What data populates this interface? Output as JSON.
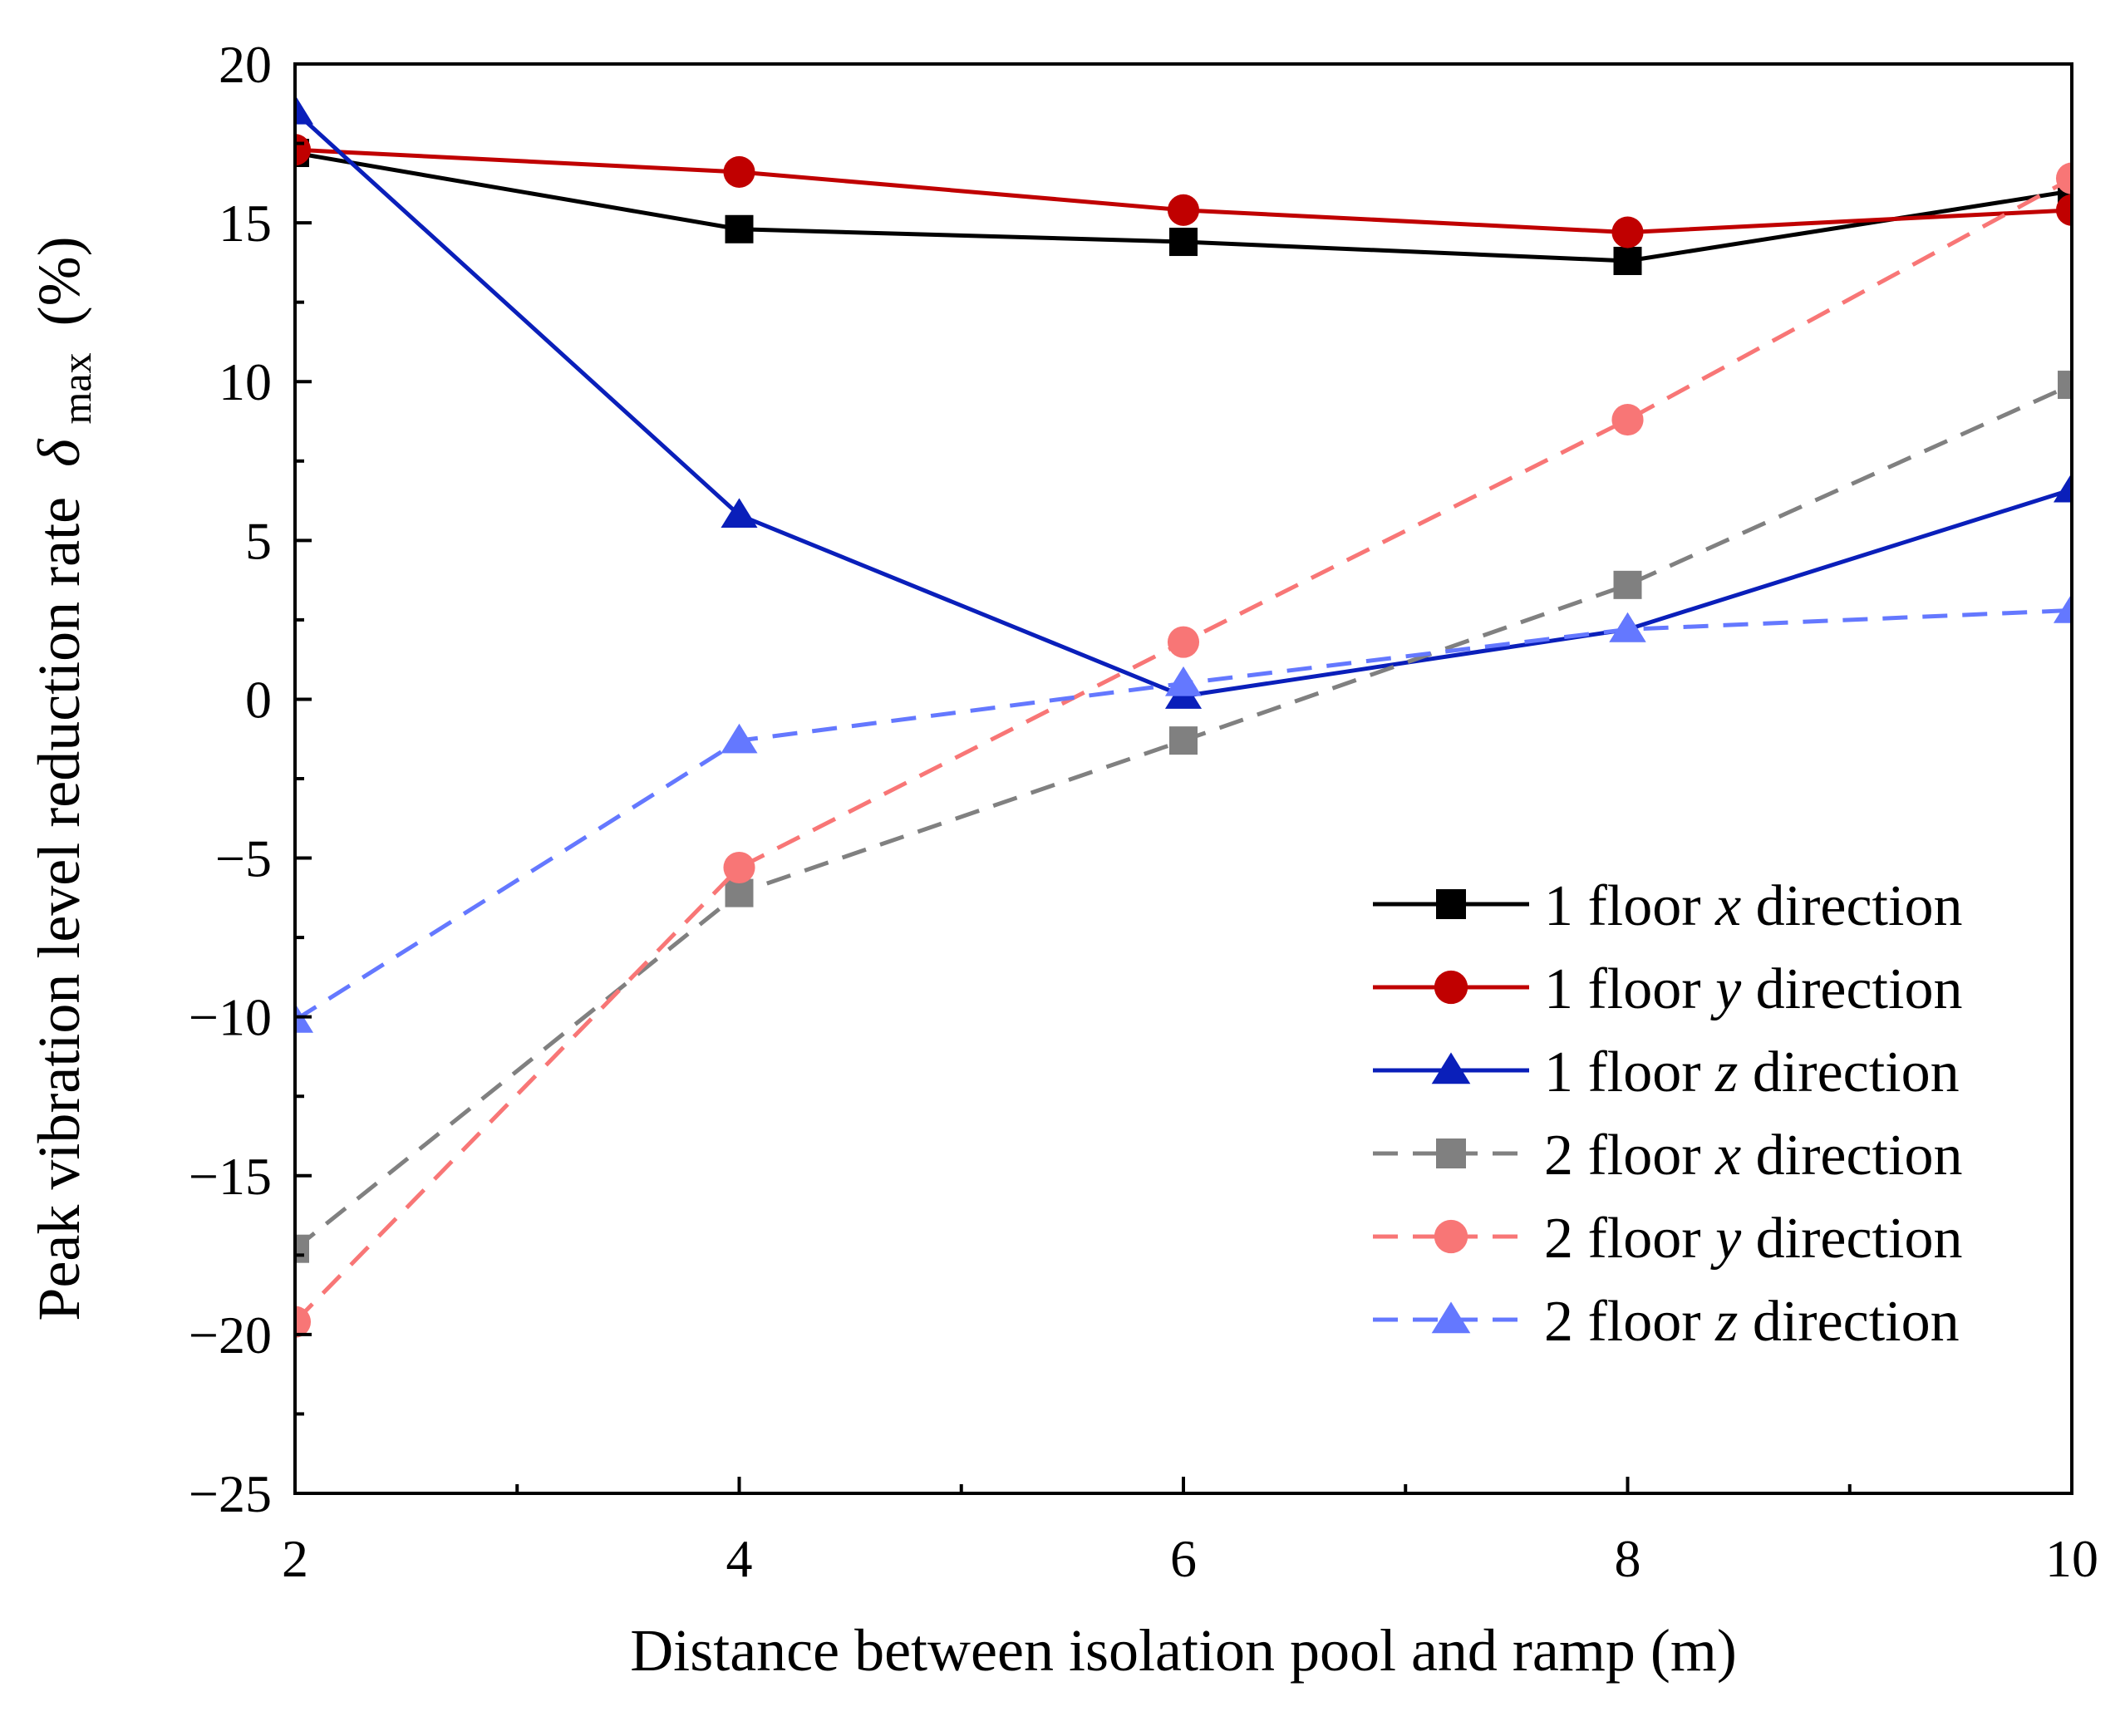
{
  "chart_data": {
    "type": "line",
    "title": "",
    "xlabel": "Distance between isolation pool and ramp (m)",
    "ylabel": {
      "main": "Peak vibration level reduction rate",
      "symbol": "δ",
      "subscript": "max",
      "unit": "(%)"
    },
    "xlim": [
      2,
      10
    ],
    "ylim": [
      -25,
      20
    ],
    "x_ticks": [
      "2",
      "4",
      "6",
      "8",
      "10"
    ],
    "y_ticks": [
      "20",
      "15",
      "10",
      "5",
      "0",
      "−5",
      "−10",
      "−15",
      "−20",
      "−25"
    ],
    "x": [
      2,
      4,
      6,
      8,
      10
    ],
    "legend_position": "lower-right",
    "grid": false,
    "series": [
      {
        "name_prefix": "1 floor",
        "axis": "x",
        "name_suffix": "direction",
        "color": "#000000",
        "marker": "square",
        "line_style": "solid",
        "values": [
          17.2,
          14.8,
          14.4,
          13.8,
          16.0
        ]
      },
      {
        "name_prefix": "1 floor",
        "axis": "y",
        "name_suffix": "direction",
        "color": "#c00000",
        "marker": "circle",
        "line_style": "solid",
        "values": [
          17.3,
          16.6,
          15.4,
          14.7,
          15.4
        ]
      },
      {
        "name_prefix": "1 floor",
        "axis": "z",
        "name_suffix": "direction",
        "color": "#0a1fba",
        "marker": "triangle",
        "line_style": "solid",
        "values": [
          18.5,
          5.8,
          0.1,
          2.2,
          6.6
        ]
      },
      {
        "name_prefix": "2 floor",
        "axis": "x",
        "name_suffix": "direction",
        "color": "#808080",
        "marker": "square",
        "line_style": "dashed",
        "values": [
          -17.3,
          -6.1,
          -1.3,
          3.6,
          9.9
        ]
      },
      {
        "name_prefix": "2 floor",
        "axis": "y",
        "name_suffix": "direction",
        "color": "#f87676",
        "marker": "circle",
        "line_style": "dashed",
        "values": [
          -19.6,
          -5.3,
          1.8,
          8.8,
          16.4
        ]
      },
      {
        "name_prefix": "2 floor",
        "axis": "z",
        "name_suffix": "direction",
        "color": "#6478ff",
        "marker": "triangle",
        "line_style": "dashed",
        "values": [
          -10.1,
          -1.3,
          0.5,
          2.2,
          2.8
        ]
      }
    ]
  }
}
